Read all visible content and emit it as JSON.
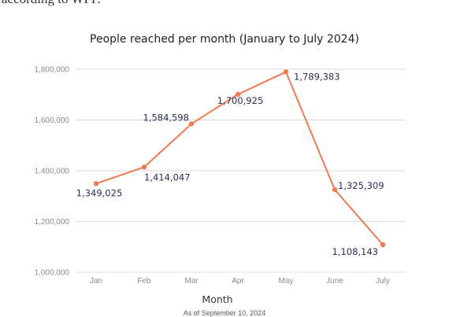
{
  "intro_text": "according to WFP.",
  "footnote": "As of September 10, 2024",
  "colors": {
    "line": "#ef7a52",
    "grid": "#d9d9d9",
    "label": "#2b2e55"
  },
  "chart_data": {
    "type": "line",
    "title": "People reached per month (January to July 2024)",
    "xlabel": "Month",
    "ylabel": "",
    "categories": [
      "Jan",
      "Feb",
      "Mar",
      "Apr",
      "May",
      "June",
      "July"
    ],
    "series": [
      {
        "values": [
          1349025,
          1414047,
          1584598,
          1700925,
          1789383,
          1325309,
          1108143
        ]
      }
    ],
    "data_labels": [
      "1,349,025",
      "1,414,047",
      "1,584,598",
      "1,700,925",
      "1,789,383",
      "1,325,309",
      "1,108,143"
    ],
    "ylim": [
      1000000,
      1800000
    ],
    "yticks": [
      1000000,
      1200000,
      1400000,
      1600000,
      1800000
    ],
    "ytick_labels": [
      "1,000,000",
      "1,200,000",
      "1,400,000",
      "1,600,000",
      "1,800,000"
    ],
    "grid": true,
    "legend": "none"
  }
}
